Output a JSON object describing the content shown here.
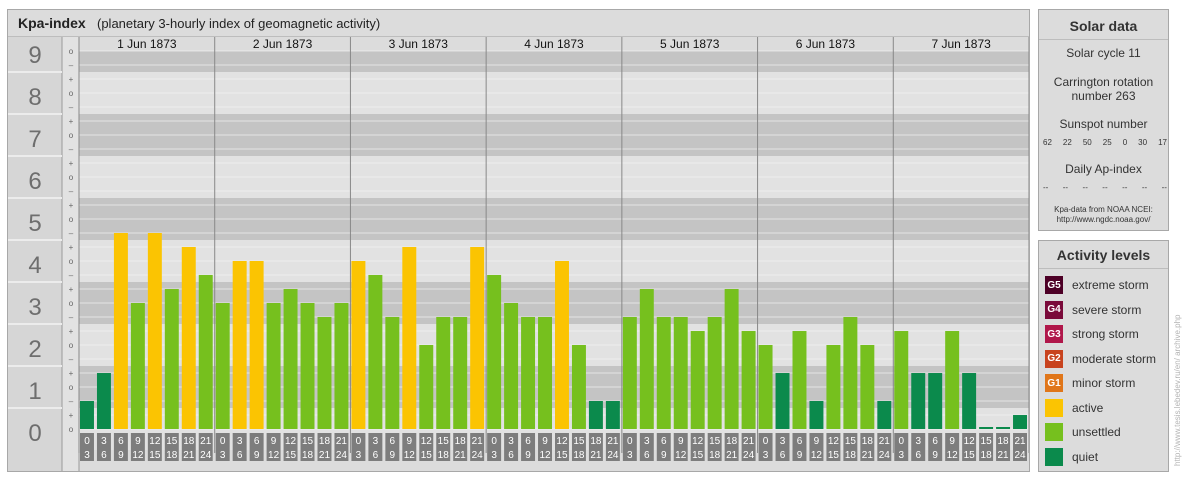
{
  "header": {
    "title": "Kpa-index",
    "subtitle": "(planetary 3-hourly index of geomagnetic activity)"
  },
  "chart_data": {
    "type": "bar",
    "y_ticks": [
      "0",
      "1",
      "2",
      "3",
      "4",
      "5",
      "6",
      "7",
      "8",
      "9"
    ],
    "sub_ticks": [
      "o",
      "+",
      "–",
      "o",
      "+",
      "–",
      "o",
      "+",
      "–",
      "o",
      "+",
      "–",
      "o",
      "+",
      "–",
      "o",
      "+",
      "–",
      "o",
      "+",
      "–",
      "o",
      "+",
      "–",
      "o",
      "+",
      "–",
      "o"
    ],
    "ylim": [
      0,
      9
    ],
    "grid": true,
    "days": [
      "1 Jun 1873",
      "2 Jun 1873",
      "3 Jun 1873",
      "4 Jun 1873",
      "5 Jun 1873",
      "6 Jun 1873",
      "7 Jun 1873"
    ],
    "intervals": [
      [
        "0",
        "3"
      ],
      [
        "3",
        "6"
      ],
      [
        "6",
        "9"
      ],
      [
        "9",
        "12"
      ],
      [
        "12",
        "15"
      ],
      [
        "15",
        "18"
      ],
      [
        "18",
        "21"
      ],
      [
        "21",
        "24"
      ]
    ],
    "values": [
      0.667,
      1.333,
      4.667,
      3.0,
      4.667,
      3.333,
      4.333,
      3.667,
      3.0,
      4.0,
      4.0,
      3.0,
      3.333,
      3.0,
      2.667,
      3.0,
      4.0,
      3.667,
      2.667,
      4.333,
      2.0,
      2.667,
      2.667,
      4.333,
      3.667,
      3.0,
      2.667,
      2.667,
      4.0,
      2.0,
      0.667,
      0.667,
      2.667,
      3.333,
      2.667,
      2.667,
      2.333,
      2.667,
      3.333,
      2.333,
      2.0,
      1.333,
      2.333,
      0.667,
      2.0,
      2.667,
      2.0,
      0.667,
      2.333,
      1.333,
      1.333,
      2.333,
      1.333,
      0.0,
      0.0,
      0.333
    ],
    "colors": {
      "extreme": "#4d0026",
      "severe": "#7a0a3a",
      "strong": "#b0174a",
      "moderate": "#c8431e",
      "minor": "#e0761a",
      "active": "#fbc402",
      "unsettled": "#76c01e",
      "quiet": "#0b8a4c"
    }
  },
  "solar": {
    "title": "Solar data",
    "cycle": "Solar cycle 11",
    "carrington_line1": "Carrington rotation",
    "carrington_line2": "number 263",
    "sunspot_title": "Sunspot number",
    "sunspot_values": [
      "62",
      "22",
      "50",
      "25",
      "0",
      "30",
      "17"
    ],
    "ap_title": "Daily Ap-index",
    "ap_values": [
      "--",
      "--",
      "--",
      "--",
      "--",
      "--",
      "--"
    ],
    "source_line1": "Kpa-data from NOAA NCEI:",
    "source_line2": "http://www.ngdc.noaa.gov/"
  },
  "activity": {
    "title": "Activity levels",
    "levels": [
      {
        "badge": "G5",
        "label": "extreme storm",
        "color": "#4d0026"
      },
      {
        "badge": "G4",
        "label": "severe storm",
        "color": "#7a0a3a"
      },
      {
        "badge": "G3",
        "label": "strong storm",
        "color": "#b0174a"
      },
      {
        "badge": "G2",
        "label": "moderate storm",
        "color": "#c8431e"
      },
      {
        "badge": "G1",
        "label": "minor storm",
        "color": "#e0761a"
      },
      {
        "badge": "",
        "label": "active",
        "color": "#fbc402"
      },
      {
        "badge": "",
        "label": "unsettled",
        "color": "#76c01e"
      },
      {
        "badge": "",
        "label": "quiet",
        "color": "#0b8a4c"
      }
    ]
  },
  "credit": "http://www.tesis.lebedev.ru/en/  archive.php"
}
